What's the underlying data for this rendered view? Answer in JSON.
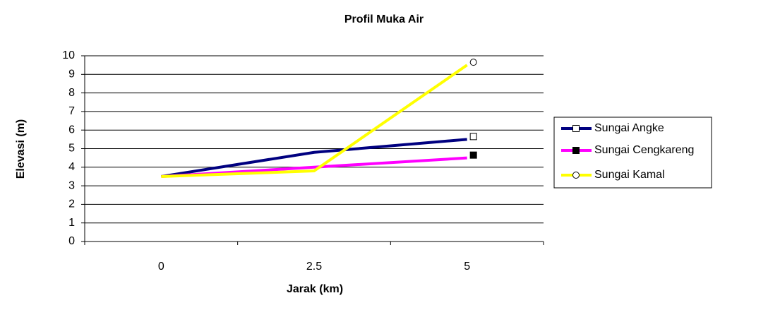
{
  "chart_data": {
    "type": "line",
    "title": "Profil Muka Air",
    "x_label": "Jarak (km)",
    "y_label": "Elevasi (m)",
    "categories": [
      "0",
      "2.5",
      "5"
    ],
    "series": [
      {
        "name": "Sungai Angke",
        "color": "#000080",
        "marker": "square-open",
        "values": [
          3.5,
          4.8,
          5.5
        ]
      },
      {
        "name": "Sungai Cengkareng",
        "color": "#ff00ff",
        "marker": "square-filled",
        "values": [
          3.5,
          4.0,
          4.5
        ]
      },
      {
        "name": "Sungai Kamal",
        "color": "#ffff00",
        "marker": "circle-open",
        "values": [
          3.5,
          3.8,
          9.5
        ]
      }
    ],
    "ylim": [
      0,
      10
    ],
    "yticks": [
      0,
      1,
      2,
      3,
      4,
      5,
      6,
      7,
      8,
      9,
      10
    ],
    "grid": true,
    "legend": "right"
  }
}
